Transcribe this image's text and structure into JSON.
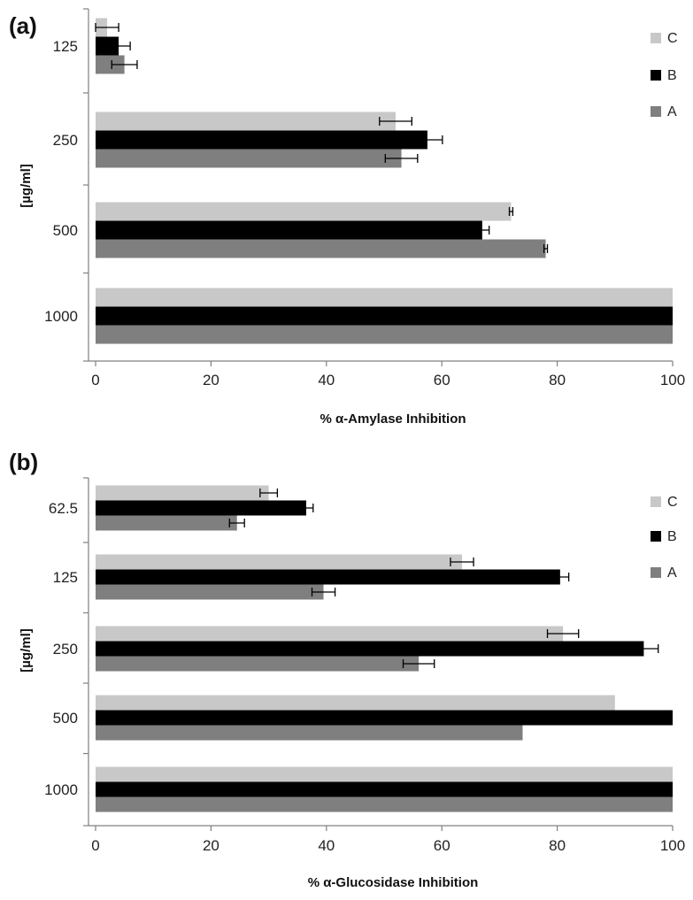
{
  "chart_data": [
    {
      "panel_label": "(a)",
      "type": "bar",
      "orientation": "horizontal",
      "categories": [
        "125",
        "250",
        "500",
        "1000"
      ],
      "series": [
        {
          "name": "C",
          "color": "#c8c8c8",
          "values": [
            2,
            52,
            72,
            100
          ],
          "errors": [
            2.0,
            2.8,
            0.3,
            0
          ]
        },
        {
          "name": "B",
          "color": "#000000",
          "values": [
            4,
            57.5,
            67,
            100
          ],
          "errors": [
            2.0,
            2.6,
            1.2,
            0
          ]
        },
        {
          "name": "A",
          "color": "#7f7f7f",
          "values": [
            5,
            53,
            78,
            100
          ],
          "errors": [
            2.2,
            2.8,
            0.3,
            0
          ]
        }
      ],
      "xlabel": "% α-Amylase Inhibition",
      "ylabel": "[µg/ml]",
      "xlim": [
        0,
        100
      ],
      "xticks": [
        "0",
        "20",
        "40",
        "60",
        "80",
        "100"
      ],
      "grid": false,
      "legend": "top-right"
    },
    {
      "panel_label": "(b)",
      "type": "bar",
      "orientation": "horizontal",
      "categories": [
        "62.5",
        "125",
        "250",
        "500",
        "1000"
      ],
      "series": [
        {
          "name": "C",
          "color": "#c8c8c8",
          "values": [
            30,
            63.5,
            81,
            90,
            100
          ],
          "errors": [
            1.5,
            2.0,
            2.7,
            0,
            0
          ]
        },
        {
          "name": "B",
          "color": "#000000",
          "values": [
            36.5,
            80.5,
            95,
            100,
            100
          ],
          "errors": [
            1.2,
            1.5,
            2.5,
            0,
            0
          ]
        },
        {
          "name": "A",
          "color": "#7f7f7f",
          "values": [
            24.5,
            39.5,
            56,
            74,
            100
          ],
          "errors": [
            1.3,
            2.0,
            2.7,
            0,
            0
          ]
        }
      ],
      "xlabel": "% α-Glucosidase Inhibition",
      "ylabel": "[µg/ml]",
      "xlim": [
        0,
        100
      ],
      "xticks": [
        "0",
        "20",
        "40",
        "60",
        "80",
        "100"
      ],
      "grid": false,
      "legend": "top-right"
    }
  ]
}
